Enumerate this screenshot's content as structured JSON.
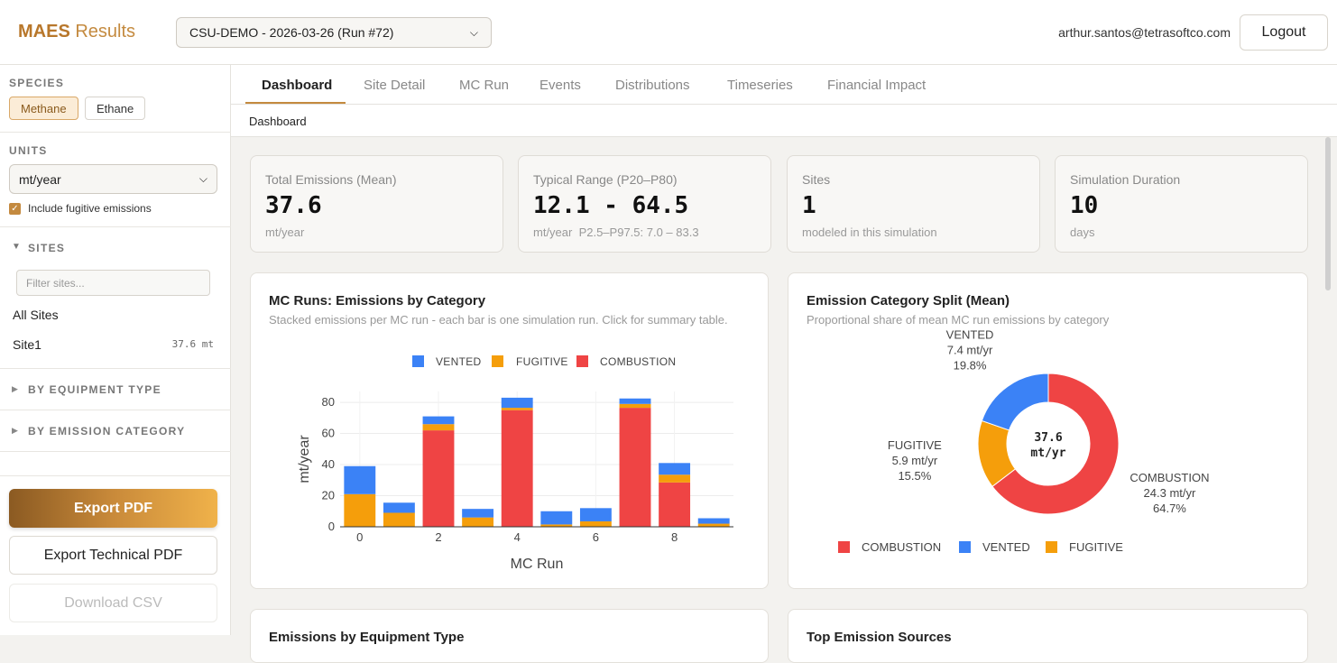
{
  "app": {
    "brand_bold": "MAES",
    "brand_rest": "Results"
  },
  "header": {
    "run_select": "CSU-DEMO - 2026-03-26 (Run #72)",
    "user": "arthur.santos@tetrasoftco.com",
    "logout": "Logout"
  },
  "sidebar": {
    "species_label": "SPECIES",
    "species": [
      "Methane",
      "Ethane"
    ],
    "units_label": "UNITS",
    "units_value": "mt/year",
    "fugitive_label": "Include fugitive emissions",
    "sites_label": "SITES",
    "filter_placeholder": "Filter sites...",
    "all_sites": "All Sites",
    "site_name": "Site1",
    "site_value": "37.6 mt",
    "equipment_label": "BY EQUIPMENT TYPE",
    "category_label": "BY EMISSION CATEGORY",
    "export_pdf": "Export PDF",
    "export_tech": "Export Technical PDF",
    "download_csv": "Download CSV"
  },
  "tabs": [
    "Dashboard",
    "Site Detail",
    "MC Run",
    "Events",
    "Distributions",
    "Timeseries",
    "Financial Impact"
  ],
  "breadcrumb": "Dashboard",
  "kpis": [
    {
      "label": "Total Emissions (Mean)",
      "value": "37.6",
      "sub": "mt/year"
    },
    {
      "label": "Typical Range (P20–P80)",
      "value": "12.1 - 64.5",
      "sub": "mt/year  P2.5–P97.5: 7.0 – 83.3"
    },
    {
      "label": "Sites",
      "value": "1",
      "sub": "modeled in this simulation"
    },
    {
      "label": "Simulation Duration",
      "value": "10",
      "sub": "days"
    }
  ],
  "bar_card": {
    "title": "MC Runs: Emissions by Category",
    "subtitle": "Stacked emissions per MC run - each bar is one simulation run. Click for summary table."
  },
  "donut_card": {
    "title": "Emission Category Split (Mean)",
    "subtitle": "Proportional share of mean MC run emissions by category",
    "center": "37.6",
    "center_unit": "mt/yr"
  },
  "bottom_cards": {
    "left_title": "Emissions by Equipment Type",
    "right_title": "Top Emission Sources"
  },
  "colors": {
    "vented": "#3b82f6",
    "fugitive": "#f59e0b",
    "combustion": "#ef4444",
    "accent": "#c48a3f"
  },
  "chart_data": [
    {
      "type": "bar",
      "stacked": true,
      "xlabel": "MC Run",
      "ylabel": "mt/year",
      "ylim": [
        0,
        87
      ],
      "x_ticks": [
        "0",
        "2",
        "4",
        "6",
        "8"
      ],
      "y_ticks": [
        "0",
        "20",
        "40",
        "60",
        "80"
      ],
      "categories": [
        0,
        1,
        2,
        3,
        4,
        5,
        6,
        7,
        8,
        9
      ],
      "series": [
        {
          "name": "VENTED",
          "color": "#3b82f6",
          "values": [
            18,
            6.5,
            5,
            5.5,
            6.5,
            8.5,
            8.5,
            3.5,
            7.5,
            3.5
          ]
        },
        {
          "name": "FUGITIVE",
          "color": "#f59e0b",
          "values": [
            21,
            9,
            4,
            6,
            1.5,
            1.5,
            3.5,
            2.5,
            5,
            2
          ]
        },
        {
          "name": "COMBUSTION",
          "color": "#ef4444",
          "values": [
            0,
            0,
            62,
            0,
            75,
            0,
            0,
            76.5,
            28.5,
            0
          ]
        }
      ],
      "legend_position": "top"
    },
    {
      "type": "pie",
      "donut": true,
      "slices": [
        {
          "name": "COMBUSTION",
          "value": 24.3,
          "percent": 64.7,
          "label": "24.3 mt/yr",
          "pct_label": "64.7%",
          "color": "#ef4444"
        },
        {
          "name": "VENTED",
          "value": 7.4,
          "percent": 19.8,
          "label": "7.4 mt/yr",
          "pct_label": "19.8%",
          "color": "#3b82f6"
        },
        {
          "name": "FUGITIVE",
          "value": 5.9,
          "percent": 15.5,
          "label": "5.9 mt/yr",
          "pct_label": "15.5%",
          "color": "#f59e0b"
        }
      ],
      "legend_position": "bottom"
    }
  ]
}
